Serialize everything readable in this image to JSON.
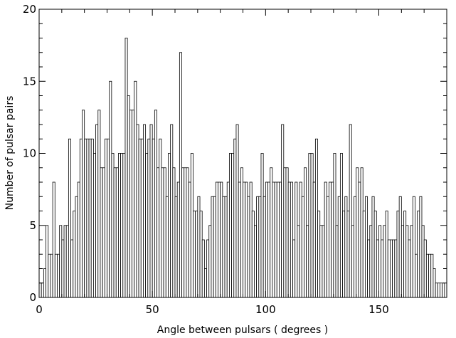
{
  "chart_data": {
    "type": "bar",
    "style": "histogram",
    "title": "",
    "xlabel": "Angle between pulsars ( degrees )",
    "ylabel": "Number of pulsar pairs",
    "xlim": [
      0,
      180
    ],
    "ylim": [
      0,
      20
    ],
    "x_ticks": [
      0,
      50,
      100,
      150
    ],
    "y_ticks": [
      0,
      5,
      10,
      15,
      20
    ],
    "bin_width": 1,
    "bin_start": 0,
    "values": [
      1,
      1,
      2,
      5,
      3,
      3,
      8,
      3,
      3,
      5,
      4,
      5,
      5,
      11,
      4,
      6,
      7,
      8,
      11,
      13,
      11,
      11,
      11,
      11,
      10,
      12,
      13,
      9,
      9,
      11,
      11,
      15,
      10,
      9,
      9,
      10,
      10,
      10,
      18,
      14,
      13,
      13,
      15,
      12,
      11,
      11,
      12,
      10,
      11,
      12,
      11,
      13,
      9,
      11,
      9,
      9,
      7,
      10,
      12,
      9,
      7,
      8,
      17,
      9,
      9,
      9,
      8,
      10,
      6,
      6,
      7,
      6,
      4,
      2,
      4,
      5,
      7,
      7,
      8,
      8,
      8,
      7,
      7,
      8,
      10,
      10,
      11,
      12,
      8,
      9,
      8,
      8,
      7,
      8,
      6,
      5,
      7,
      7,
      10,
      7,
      8,
      8,
      9,
      8,
      8,
      8,
      8,
      12,
      9,
      9,
      8,
      8,
      4,
      8,
      5,
      8,
      7,
      9,
      5,
      10,
      10,
      8,
      11,
      6,
      5,
      5,
      8,
      7,
      8,
      8,
      10,
      5,
      7,
      10,
      6,
      7,
      6,
      12,
      5,
      7,
      9,
      8,
      9,
      6,
      7,
      4,
      5,
      7,
      6,
      4,
      5,
      4,
      5,
      6,
      4,
      4,
      4,
      4,
      6,
      7,
      5,
      6,
      5,
      4,
      5,
      7,
      3,
      6,
      7,
      5,
      4,
      3,
      3,
      3,
      2,
      1,
      1,
      1,
      1
    ]
  }
}
